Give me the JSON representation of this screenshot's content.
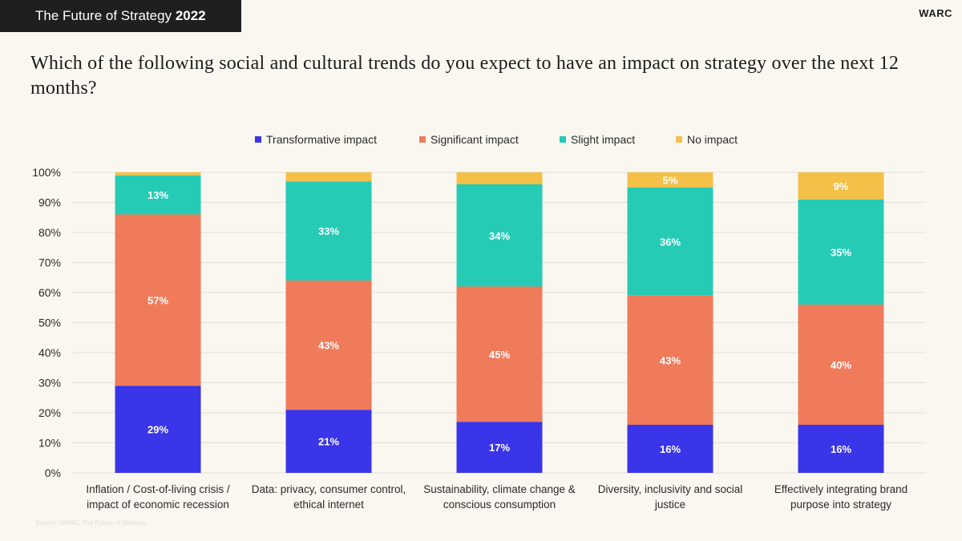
{
  "header": {
    "title_light": "The Future of Strategy",
    "title_bold": "2022",
    "brand": "WARC"
  },
  "question": "Which of the following social and cultural trends do you expect to have an impact on strategy over the next 12 months?",
  "source_note": "Source: WARC, The Future of Strategy",
  "colors": {
    "transformative": "#3a35e8",
    "significant": "#f07b5b",
    "slight": "#26cbb6",
    "none": "#f4c048",
    "grid": "#e2ded6"
  },
  "chart_data": {
    "type": "bar",
    "stacked": true,
    "categories": [
      "Inflation / Cost-of-living crisis / impact of economic recession",
      "Data: privacy, consumer control, ethical internet",
      "Sustainability, climate change & conscious consumption",
      "Diversity, inclusivity and social justice",
      "Effectively integrating brand purpose into strategy"
    ],
    "category_lines": [
      [
        "Inflation / Cost-of-living crisis /",
        "impact of economic recession"
      ],
      [
        "Data: privacy, consumer control,",
        "ethical internet"
      ],
      [
        "Sustainability, climate change &",
        "conscious consumption"
      ],
      [
        "Diversity, inclusivity and social",
        "justice"
      ],
      [
        "Effectively integrating brand",
        "purpose into strategy"
      ]
    ],
    "series": [
      {
        "name": "Transformative impact",
        "key": "transformative",
        "values": [
          29,
          21,
          17,
          16,
          16
        ],
        "labels": [
          "29%",
          "21%",
          "17%",
          "16%",
          "16%"
        ]
      },
      {
        "name": "Significant impact",
        "key": "significant",
        "values": [
          57,
          43,
          45,
          43,
          40
        ],
        "labels": [
          "57%",
          "43%",
          "45%",
          "43%",
          "40%"
        ]
      },
      {
        "name": "Slight impact",
        "key": "slight",
        "values": [
          13,
          33,
          34,
          36,
          35
        ],
        "labels": [
          "13%",
          "33%",
          "34%",
          "36%",
          "35%"
        ]
      },
      {
        "name": "No impact",
        "key": "none",
        "values": [
          1,
          3,
          4,
          5,
          9
        ],
        "labels": [
          "",
          "",
          "",
          "5%",
          "9%"
        ]
      }
    ],
    "yticks": [
      "0%",
      "10%",
      "20%",
      "30%",
      "40%",
      "50%",
      "60%",
      "70%",
      "80%",
      "90%",
      "100%"
    ],
    "ylim": [
      0,
      100
    ],
    "grid": true,
    "legend_position": "top-center"
  }
}
